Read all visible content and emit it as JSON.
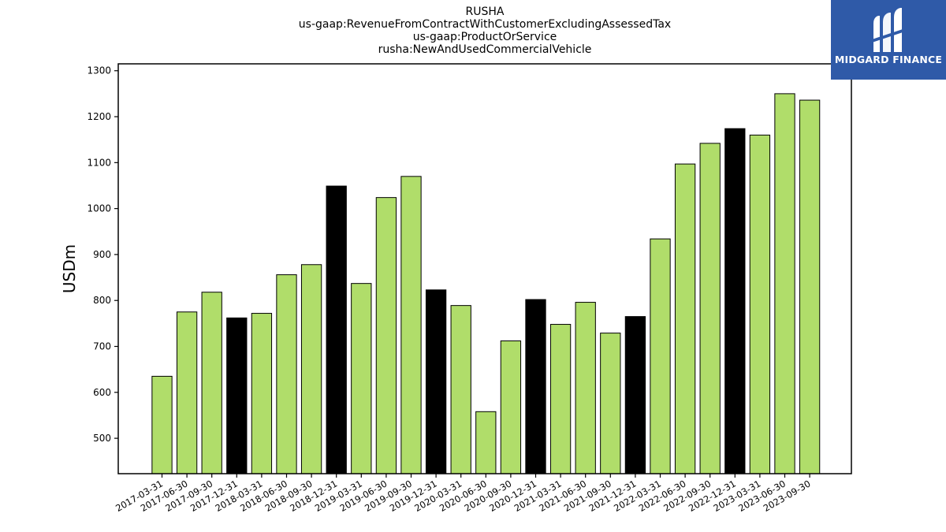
{
  "titles": {
    "line1": "RUSHA",
    "line2": "us-gaap:RevenueFromContractWithCustomerExcludingAssessedTax",
    "line3": "us-gaap:ProductOrService",
    "line4": "rusha:NewAndUsedCommercialVehicle"
  },
  "logo": {
    "text": "MIDGARD FINANCE",
    "icon": "midgard-logo-icon",
    "background": "#2f5aa8"
  },
  "chart_data": {
    "type": "bar",
    "ylabel": "USDm",
    "xlabel": "",
    "ylim": [
      423,
      1315
    ],
    "yticks": [
      500,
      600,
      700,
      800,
      900,
      1000,
      1100,
      1200,
      1300
    ],
    "colors": {
      "quarter": "#b0dd6a",
      "year_end": "#000000",
      "edge": "#000000"
    },
    "categories": [
      "2017-03-31",
      "2017-06-30",
      "2017-09-30",
      "2017-12-31",
      "2018-03-31",
      "2018-06-30",
      "2018-09-30",
      "2018-12-31",
      "2019-03-31",
      "2019-06-30",
      "2019-09-30",
      "2019-12-31",
      "2020-03-31",
      "2020-06-30",
      "2020-09-30",
      "2020-12-31",
      "2021-03-31",
      "2021-06-30",
      "2021-09-30",
      "2021-12-31",
      "2022-03-31",
      "2022-06-30",
      "2022-09-30",
      "2022-12-31",
      "2023-03-31",
      "2023-06-30",
      "2023-09-30"
    ],
    "values": [
      635,
      775,
      818,
      762,
      772,
      856,
      878,
      1049,
      837,
      1024,
      1070,
      823,
      789,
      558,
      712,
      802,
      748,
      796,
      729,
      765,
      934,
      1097,
      1142,
      1174,
      1160,
      1250,
      1236
    ],
    "year_end": [
      false,
      false,
      false,
      true,
      false,
      false,
      false,
      true,
      false,
      false,
      false,
      true,
      false,
      false,
      false,
      true,
      false,
      false,
      false,
      true,
      false,
      false,
      false,
      true,
      false,
      false,
      false
    ]
  }
}
